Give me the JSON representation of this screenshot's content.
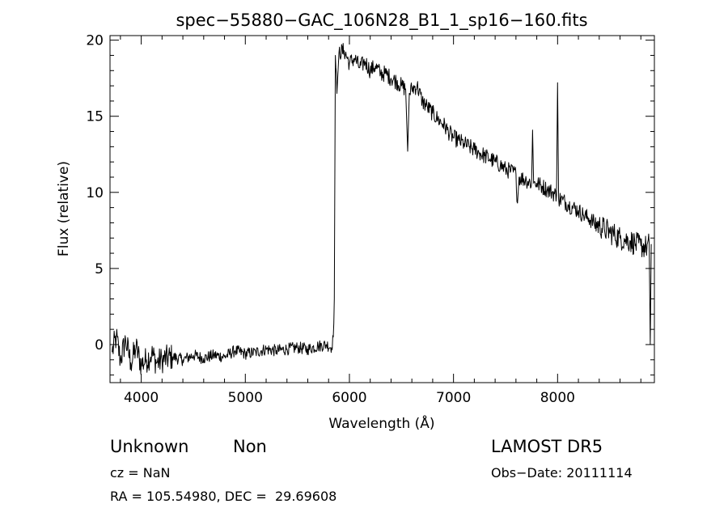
{
  "chart_data": {
    "type": "line",
    "title": "spec−55880−GAC_106N28_B1_1_sp16−160.fits",
    "xlabel": "Wavelength (Å)",
    "ylabel": "Flux (relative)",
    "xlim": [
      3700,
      8930
    ],
    "ylim": [
      -2.5,
      20.3
    ],
    "xticks": [
      4000,
      5000,
      6000,
      7000,
      8000
    ],
    "yticks": [
      0,
      5,
      10,
      15,
      20
    ],
    "grid": false,
    "series": [
      {
        "x": [
          3720,
          3760,
          3800,
          3850,
          3900,
          3950,
          4000,
          4050,
          4100,
          4150,
          4200,
          4300,
          4400,
          4500,
          4600,
          4700,
          4800,
          4900,
          5000,
          5100,
          5200,
          5300,
          5400,
          5500,
          5600,
          5700,
          5780,
          5830,
          5845,
          5855,
          5865,
          5880,
          5900,
          5950,
          6000,
          6050,
          6100,
          6150,
          6200,
          6250,
          6300,
          6350,
          6400,
          6450,
          6500,
          6540,
          6560,
          6575,
          6600,
          6650,
          6700,
          6750,
          6800,
          6850,
          6900,
          6950,
          7000,
          7050,
          7100,
          7150,
          7200,
          7250,
          7300,
          7350,
          7400,
          7450,
          7500,
          7550,
          7600,
          7615,
          7630,
          7700,
          7750,
          7760,
          7770,
          7800,
          7850,
          7900,
          7950,
          7990,
          8000,
          8010,
          8050,
          8100,
          8150,
          8200,
          8250,
          8300,
          8350,
          8400,
          8450,
          8500,
          8550,
          8600,
          8650,
          8700,
          8750,
          8800,
          8850,
          8880,
          8890,
          8900
        ],
        "y": [
          -0.5,
          0.5,
          -1.0,
          0.3,
          -1.2,
          -0.2,
          -1.3,
          -1.0,
          -0.6,
          -1.2,
          -1.0,
          -0.8,
          -1.0,
          -0.7,
          -0.9,
          -0.7,
          -0.8,
          -0.4,
          -0.6,
          -0.5,
          -0.3,
          -0.4,
          -0.3,
          -0.2,
          -0.3,
          -0.1,
          0.0,
          -0.2,
          0.5,
          3.0,
          19.0,
          16.5,
          19.2,
          19.3,
          18.5,
          18.8,
          18.2,
          18.6,
          18.0,
          18.3,
          17.8,
          17.8,
          17.5,
          17.3,
          17.0,
          16.8,
          12.7,
          16.5,
          16.8,
          17.0,
          16.0,
          15.6,
          15.2,
          14.8,
          14.5,
          14.0,
          13.6,
          13.4,
          13.2,
          13.0,
          12.8,
          12.6,
          12.4,
          12.2,
          12.0,
          11.8,
          11.5,
          11.4,
          11.2,
          9.3,
          11.0,
          10.8,
          10.6,
          14.1,
          10.6,
          10.6,
          10.4,
          10.2,
          10.0,
          9.8,
          17.2,
          9.6,
          9.5,
          9.2,
          9.0,
          8.8,
          8.5,
          8.3,
          8.0,
          7.8,
          7.6,
          7.4,
          7.2,
          7.0,
          6.9,
          6.8,
          6.6,
          6.5,
          6.4,
          6.6,
          0.0,
          6.6
        ]
      }
    ]
  },
  "info": {
    "classification": "Unknown",
    "subclass": "Non",
    "survey": "LAMOST DR5",
    "redshift": "cz = NaN",
    "obs_date": "Obs−Date: 20111114",
    "coordinates": "RA = 105.54980, DEC =  29.69608"
  }
}
